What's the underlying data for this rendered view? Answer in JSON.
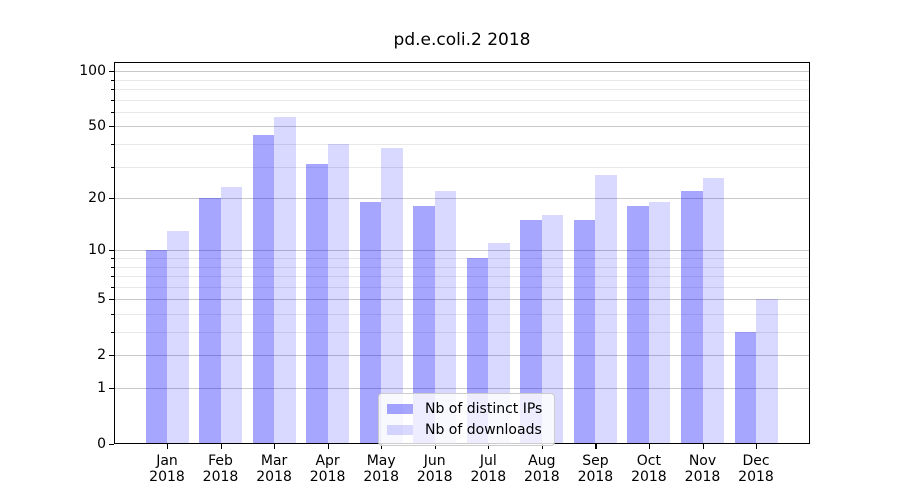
{
  "title": {
    "text": "pd.e.coli.2 2018"
  },
  "chart_data": {
    "type": "bar",
    "title": "pd.e.coli.2 2018",
    "categories": [
      "Jan 2018",
      "Feb 2018",
      "Mar 2018",
      "Apr 2018",
      "May 2018",
      "Jun 2018",
      "Jul 2018",
      "Aug 2018",
      "Sep 2018",
      "Oct 2018",
      "Nov 2018",
      "Dec 2018"
    ],
    "series": [
      {
        "name": "Nb of distinct IPs",
        "fill": "rgba(0,0,255,0.35)",
        "hex_on_white": "#a6a6ff",
        "values": [
          10,
          20,
          45,
          31,
          19,
          18,
          9,
          15,
          15,
          18,
          22,
          3
        ]
      },
      {
        "name": "Nb of downloads",
        "fill": "rgba(0,0,255,0.15)",
        "hex_on_white": "#d9d9ff",
        "values": [
          13,
          23,
          56,
          40,
          38,
          22,
          11,
          16,
          27,
          19,
          26,
          5
        ]
      }
    ],
    "xlabel": "",
    "ylabel": "",
    "yscale": "symlog (log10 of value+1)",
    "ylim": [
      0,
      112
    ],
    "y_major_ticks": [
      0,
      1,
      2,
      5,
      10,
      20,
      50,
      100
    ],
    "y_minor_gridlines": [
      3,
      4,
      6,
      7,
      8,
      9,
      30,
      40,
      60,
      70,
      80,
      90
    ],
    "grid": true,
    "legend_position": "lower center"
  },
  "colors": {
    "background": "#ffffff",
    "grid_major": "#c9c9c9",
    "grid_minor": "#e8e8e8",
    "spine": "#000000",
    "text": "#000000",
    "legend_border": "#cccccc",
    "legend_bg": "rgba(255,255,255,0.8)"
  }
}
